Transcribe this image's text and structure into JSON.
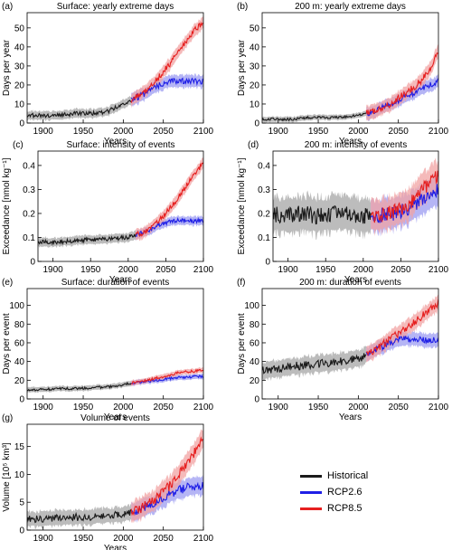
{
  "colors": {
    "historical": "#1a1a1a",
    "historical_band": "#a6a6a6",
    "rcp26": "#1f1fe6",
    "rcp26_band": "#9c9cf2",
    "rcp85": "#e61f1f",
    "rcp85_band": "#f2a3a3"
  },
  "legend": {
    "historical": "Historical",
    "rcp26": "RCP2.6",
    "rcp85": "RCP8.5"
  },
  "chart_data": [
    {
      "id": "a",
      "panel_label": "(a)",
      "type": "line",
      "title": "Surface: yearly extreme days",
      "xlabel": "Years",
      "ylabel": "Days per year",
      "xlim": [
        1880,
        2100
      ],
      "ylim": [
        0,
        58
      ],
      "xticks": [
        1900,
        1950,
        2000,
        2050,
        2100
      ],
      "yticks": [
        0,
        10,
        20,
        30,
        40,
        50
      ],
      "series": [
        {
          "name": "Historical",
          "x": [
            1880,
            1900,
            1920,
            1940,
            1960,
            1980,
            1990,
            2000,
            2010
          ],
          "y": [
            4,
            4,
            4,
            5,
            5,
            6,
            8,
            10,
            12
          ],
          "band": 2.5
        },
        {
          "name": "RCP2.6",
          "x": [
            2010,
            2020,
            2030,
            2040,
            2050,
            2060,
            2070,
            2080,
            2090,
            2100
          ],
          "y": [
            12,
            14,
            16,
            19,
            21,
            22,
            22,
            22,
            22,
            22
          ],
          "band": 3.5
        },
        {
          "name": "RCP8.5",
          "x": [
            2010,
            2020,
            2030,
            2040,
            2050,
            2060,
            2070,
            2080,
            2090,
            2100
          ],
          "y": [
            12,
            15,
            18,
            22,
            27,
            32,
            38,
            44,
            49,
            53
          ],
          "band": 3.5
        }
      ]
    },
    {
      "id": "b",
      "panel_label": "(b)",
      "type": "line",
      "title": "200 m: yearly extreme days",
      "xlabel": "Years",
      "ylabel": "Days per year",
      "xlim": [
        1880,
        2100
      ],
      "ylim": [
        0,
        58
      ],
      "xticks": [
        1900,
        1950,
        2000,
        2050,
        2100
      ],
      "yticks": [
        0,
        10,
        20,
        30,
        40,
        50
      ],
      "series": [
        {
          "name": "Historical",
          "x": [
            1880,
            1900,
            1920,
            1940,
            1960,
            1980,
            2000,
            2010
          ],
          "y": [
            2,
            2,
            2,
            3,
            3,
            3,
            4,
            5
          ],
          "band": 1.5
        },
        {
          "name": "RCP2.6",
          "x": [
            2010,
            2020,
            2030,
            2040,
            2050,
            2060,
            2070,
            2080,
            2090,
            2100
          ],
          "y": [
            5,
            6,
            8,
            10,
            12,
            14,
            16,
            18,
            20,
            22
          ],
          "band": 3.5
        },
        {
          "name": "RCP8.5",
          "x": [
            2010,
            2020,
            2030,
            2040,
            2050,
            2060,
            2070,
            2080,
            2090,
            2100
          ],
          "y": [
            5,
            6,
            8,
            10,
            13,
            16,
            19,
            23,
            29,
            38
          ],
          "band": 4
        }
      ]
    },
    {
      "id": "c",
      "panel_label": "(c)",
      "type": "line",
      "title": "Surface: intensity of events",
      "xlabel": "Years",
      "ylabel": "Exceedance [nmol kg⁻¹]",
      "xlim": [
        1880,
        2100
      ],
      "ylim": [
        0,
        0.46
      ],
      "xticks": [
        1900,
        1950,
        2000,
        2050,
        2100
      ],
      "yticks": [
        0,
        0.1,
        0.2,
        0.3,
        0.4
      ],
      "series": [
        {
          "name": "Historical",
          "x": [
            1880,
            1900,
            1920,
            1940,
            1960,
            1980,
            2000,
            2010
          ],
          "y": [
            0.08,
            0.08,
            0.085,
            0.09,
            0.09,
            0.095,
            0.1,
            0.11
          ],
          "band": 0.02
        },
        {
          "name": "RCP2.6",
          "x": [
            2010,
            2020,
            2030,
            2040,
            2050,
            2060,
            2070,
            2080,
            2090,
            2100
          ],
          "y": [
            0.11,
            0.12,
            0.13,
            0.15,
            0.16,
            0.17,
            0.17,
            0.17,
            0.17,
            0.17
          ],
          "band": 0.02
        },
        {
          "name": "RCP8.5",
          "x": [
            2010,
            2020,
            2030,
            2040,
            2050,
            2060,
            2070,
            2080,
            2090,
            2100
          ],
          "y": [
            0.11,
            0.12,
            0.14,
            0.17,
            0.2,
            0.24,
            0.28,
            0.33,
            0.37,
            0.41
          ],
          "band": 0.025
        }
      ]
    },
    {
      "id": "d",
      "panel_label": "(d)",
      "type": "line",
      "title": "200 m: intensity of events",
      "xlabel": "Years",
      "ylabel": "Exceedance [nmol kg⁻¹]",
      "xlim": [
        1880,
        2100
      ],
      "ylim": [
        0,
        0.46
      ],
      "xticks": [
        1900,
        1950,
        2000,
        2050,
        2100
      ],
      "yticks": [
        0,
        0.1,
        0.2,
        0.3,
        0.4
      ],
      "series": [
        {
          "name": "Historical",
          "x": [
            1880,
            1900,
            1920,
            1940,
            1960,
            1980,
            2000,
            2010
          ],
          "y": [
            0.2,
            0.19,
            0.2,
            0.19,
            0.2,
            0.2,
            0.19,
            0.19
          ],
          "band": 0.08
        },
        {
          "name": "RCP2.6",
          "x": [
            2010,
            2020,
            2030,
            2040,
            2050,
            2060,
            2070,
            2080,
            2090,
            2100
          ],
          "y": [
            0.19,
            0.19,
            0.2,
            0.2,
            0.21,
            0.22,
            0.24,
            0.26,
            0.28,
            0.3
          ],
          "band": 0.07
        },
        {
          "name": "RCP8.5",
          "x": [
            2010,
            2020,
            2030,
            2040,
            2050,
            2060,
            2070,
            2080,
            2090,
            2100
          ],
          "y": [
            0.19,
            0.19,
            0.2,
            0.21,
            0.22,
            0.24,
            0.27,
            0.3,
            0.33,
            0.36
          ],
          "band": 0.07
        }
      ]
    },
    {
      "id": "e",
      "panel_label": "(e)",
      "type": "line",
      "title": "Surface: duration of events",
      "xlabel": "Years",
      "ylabel": "Days per event",
      "xlim": [
        1880,
        2100
      ],
      "ylim": [
        0,
        118
      ],
      "xticks": [
        1900,
        1950,
        2000,
        2050,
        2100
      ],
      "yticks": [
        0,
        20,
        40,
        60,
        80,
        100
      ],
      "series": [
        {
          "name": "Historical",
          "x": [
            1880,
            1900,
            1920,
            1940,
            1960,
            1980,
            2000,
            2010
          ],
          "y": [
            10,
            10,
            11,
            11,
            12,
            13,
            15,
            17
          ],
          "band": 3
        },
        {
          "name": "RCP2.6",
          "x": [
            2010,
            2020,
            2030,
            2040,
            2050,
            2060,
            2070,
            2080,
            2090,
            2100
          ],
          "y": [
            17,
            18,
            19,
            20,
            21,
            22,
            23,
            23,
            24,
            24
          ],
          "band": 3
        },
        {
          "name": "RCP8.5",
          "x": [
            2010,
            2020,
            2030,
            2040,
            2050,
            2060,
            2070,
            2080,
            2090,
            2100
          ],
          "y": [
            17,
            18,
            20,
            22,
            24,
            26,
            28,
            29,
            30,
            31
          ],
          "band": 3
        }
      ]
    },
    {
      "id": "f",
      "panel_label": "(f)",
      "type": "line",
      "title": "200 m: duration of events",
      "xlabel": "Years",
      "ylabel": "Days per event",
      "xlim": [
        1880,
        2100
      ],
      "ylim": [
        0,
        118
      ],
      "xticks": [
        1900,
        1950,
        2000,
        2050,
        2100
      ],
      "yticks": [
        0,
        20,
        40,
        60,
        80,
        100
      ],
      "series": [
        {
          "name": "Historical",
          "x": [
            1880,
            1900,
            1920,
            1940,
            1960,
            1980,
            2000,
            2010
          ],
          "y": [
            30,
            32,
            35,
            37,
            38,
            40,
            43,
            47
          ],
          "band": 10
        },
        {
          "name": "RCP2.6",
          "x": [
            2010,
            2020,
            2030,
            2040,
            2050,
            2060,
            2070,
            2080,
            2090,
            2100
          ],
          "y": [
            47,
            52,
            56,
            60,
            63,
            64,
            64,
            63,
            63,
            63
          ],
          "band": 8
        },
        {
          "name": "RCP8.5",
          "x": [
            2010,
            2020,
            2030,
            2040,
            2050,
            2060,
            2070,
            2080,
            2090,
            2100
          ],
          "y": [
            47,
            52,
            58,
            64,
            70,
            76,
            82,
            89,
            96,
            103
          ],
          "band": 9
        }
      ]
    },
    {
      "id": "g",
      "panel_label": "(g)",
      "type": "line",
      "title": "Volume of events",
      "xlabel": "Years",
      "ylabel": "Volume [10⁵ km³]",
      "xlim": [
        1880,
        2100
      ],
      "ylim": [
        0,
        19
      ],
      "xticks": [
        1900,
        1950,
        2000,
        2050,
        2100
      ],
      "yticks": [
        0,
        5,
        10,
        15
      ],
      "series": [
        {
          "name": "Historical",
          "x": [
            1880,
            1900,
            1920,
            1940,
            1960,
            1980,
            2000,
            2010
          ],
          "y": [
            2,
            2,
            2.2,
            2.3,
            2.4,
            2.6,
            2.9,
            3.2
          ],
          "band": 1.5
        },
        {
          "name": "RCP2.6",
          "x": [
            2010,
            2020,
            2030,
            2040,
            2050,
            2060,
            2070,
            2080,
            2090,
            2100
          ],
          "y": [
            3.2,
            3.7,
            4.3,
            5.1,
            5.9,
            6.6,
            7.2,
            7.6,
            7.9,
            8.0
          ],
          "band": 1.8
        },
        {
          "name": "RCP8.5",
          "x": [
            2010,
            2020,
            2030,
            2040,
            2050,
            2060,
            2070,
            2080,
            2090,
            2100
          ],
          "y": [
            3.2,
            3.8,
            4.6,
            5.6,
            6.8,
            8.3,
            10.0,
            12.0,
            14.2,
            16.5
          ],
          "band": 2
        }
      ]
    }
  ]
}
